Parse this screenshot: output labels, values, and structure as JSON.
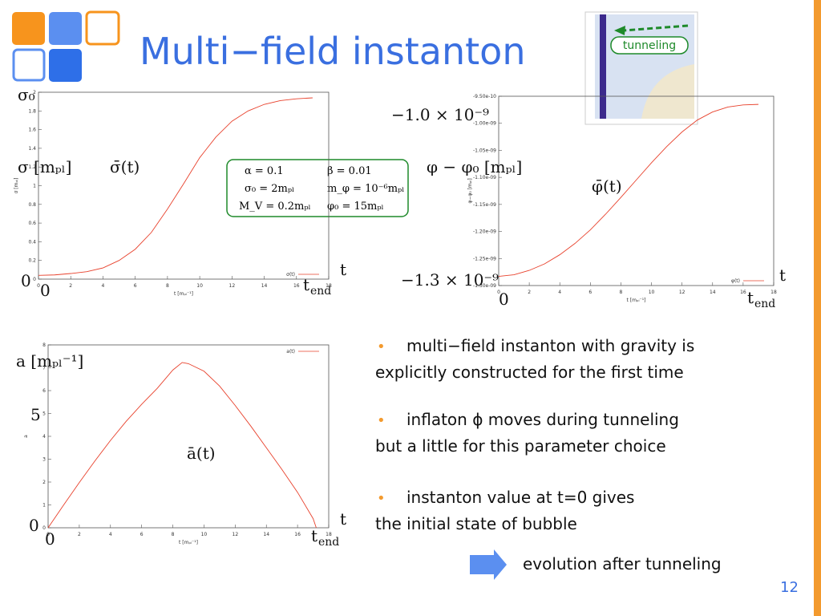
{
  "title": "Multi−field instanton",
  "inset": {
    "label": "tunneling"
  },
  "params": [
    [
      "α = 0.1",
      "β = 0.01"
    ],
    [
      "σ₀ = 2mₚₗ",
      "m_φ = 10⁻⁶mₚₗ"
    ],
    [
      "M_V = 0.2mₚₗ",
      "φ₀ = 15mₚₗ"
    ]
  ],
  "chart_data": [
    {
      "type": "line",
      "xlabel": "t [mₚₗ⁻¹]",
      "ylabel": "σ [mₚₗ]",
      "legend": "σ(t)",
      "color": "#e8412c",
      "x": [
        0,
        1,
        2,
        3,
        4,
        5,
        6,
        7,
        8,
        9,
        10,
        11,
        12,
        13,
        14,
        15,
        16,
        17
      ],
      "values": [
        0.04,
        0.045,
        0.06,
        0.08,
        0.12,
        0.2,
        0.32,
        0.5,
        0.75,
        1.02,
        1.3,
        1.52,
        1.69,
        1.8,
        1.87,
        1.91,
        1.93,
        1.94
      ],
      "xlim": [
        0,
        18
      ],
      "xticks": [
        0,
        2,
        4,
        6,
        8,
        10,
        12,
        14,
        16,
        18
      ],
      "ylim": [
        0,
        2
      ],
      "yticks": [
        0,
        0.2,
        0.4,
        0.6,
        0.8,
        1,
        1.2,
        1.4,
        1.6,
        1.8,
        2
      ],
      "annotations": [
        "σ₀",
        "σ [mₚₗ]",
        "σ̄(t)",
        "0",
        "0",
        "t"
      ],
      "end_label": {
        "base": "t",
        "sub": "end"
      }
    },
    {
      "type": "line",
      "xlabel": "t [mₚₗ⁻¹]",
      "ylabel": "φ−φ₀ [mₚₗ]",
      "legend": "φ(t)",
      "color": "#e8412c",
      "x": [
        0,
        1,
        2,
        3,
        4,
        5,
        6,
        7,
        8,
        9,
        10,
        11,
        12,
        13,
        14,
        15,
        16,
        17
      ],
      "values": [
        -1.283e-09,
        -1.28e-09,
        -1.272e-09,
        -1.26e-09,
        -1.243e-09,
        -1.222e-09,
        -1.197e-09,
        -1.168e-09,
        -1.137e-09,
        -1.105e-09,
        -1.073e-09,
        -1.043e-09,
        -1.016e-09,
        -9.94e-10,
        -9.79e-10,
        -9.7e-10,
        -9.66e-10,
        -9.65e-10
      ],
      "xlim": [
        0,
        18
      ],
      "xticks": [
        0,
        2,
        4,
        6,
        8,
        10,
        12,
        14,
        16,
        18
      ],
      "ylim": [
        -1.3e-09,
        -9.5e-10
      ],
      "yticks": [
        {
          "value": -1.3e-09,
          "label": "-1.30e-09"
        },
        {
          "value": -1.25e-09,
          "label": "-1.25e-09"
        },
        {
          "value": -1.2e-09,
          "label": "-1.20e-09"
        },
        {
          "value": -1.15e-09,
          "label": "-1.15e-09"
        },
        {
          "value": -1.1e-09,
          "label": "-1.10e-09"
        },
        {
          "value": -1.05e-09,
          "label": "-1.05e-09"
        },
        {
          "value": -1e-09,
          "label": "-1.00e-09"
        },
        {
          "value": -9.5e-10,
          "label": "-9.50e-10"
        }
      ],
      "annotations": [
        "−1.0 × 10⁻⁹",
        "φ − φ₀ [mₚₗ]",
        "φ̄(t)",
        "−1.3 × 10⁻⁹",
        "0",
        "t"
      ],
      "end_label": {
        "base": "t",
        "sub": "end"
      }
    },
    {
      "type": "line",
      "xlabel": "t [mₚₗ⁻¹]",
      "ylabel": "a",
      "legend": "a(t)",
      "color": "#e8412c",
      "x": [
        0,
        1,
        2,
        3,
        4,
        5,
        6,
        7,
        8,
        8.6,
        9,
        10,
        11,
        12,
        13,
        14,
        15,
        16,
        17,
        17.2
      ],
      "values": [
        0,
        1,
        1.98,
        2.92,
        3.82,
        4.65,
        5.4,
        6.1,
        6.9,
        7.23,
        7.18,
        6.85,
        6.2,
        5.35,
        4.45,
        3.5,
        2.55,
        1.55,
        0.4,
        0
      ],
      "xlim": [
        0,
        18
      ],
      "xticks": [
        0,
        2,
        4,
        6,
        8,
        10,
        12,
        14,
        16,
        18
      ],
      "ylim": [
        0,
        8
      ],
      "yticks": [
        0,
        1,
        2,
        3,
        4,
        5,
        6,
        7,
        8
      ],
      "annotations": [
        "a [mₚₗ⁻¹]",
        "5",
        "ā(t)",
        "0",
        "0",
        "t"
      ],
      "end_label": {
        "base": "t",
        "sub": "end"
      }
    }
  ],
  "bullets": [
    [
      "multi−field instanton with gravity is",
      "explicitly constructed for the first time"
    ],
    [
      "inflaton  ϕ  moves during tunneling",
      "but a little for this parameter choice"
    ],
    [
      "instanton value at t=0 gives",
      "the initial state of bubble"
    ]
  ],
  "arrow_text": "evolution after tunneling",
  "page_number": "12"
}
